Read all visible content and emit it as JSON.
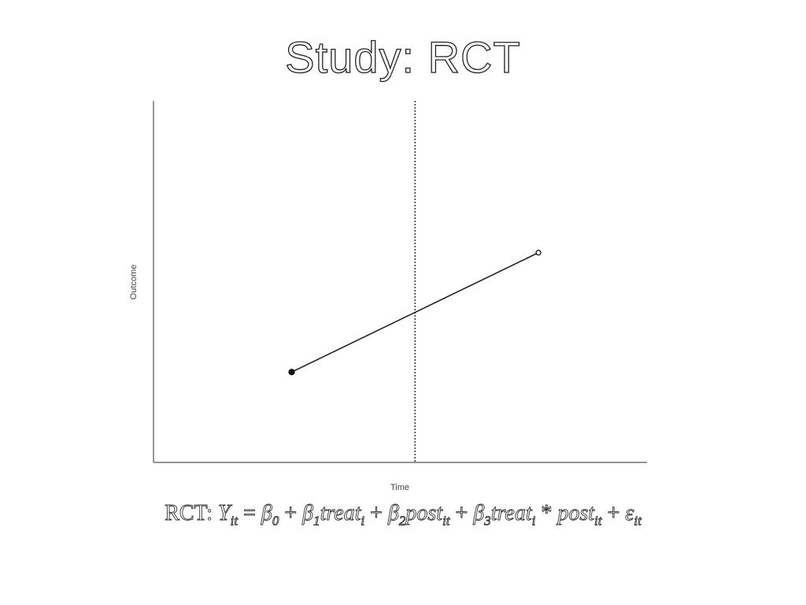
{
  "title": "Study: RCT",
  "chart_data": {
    "type": "line",
    "xlabel": "Time",
    "ylabel": "Outcome",
    "xlim": [
      0,
      1
    ],
    "ylim": [
      0,
      1
    ],
    "grid": false,
    "series": [
      {
        "x": [
          0.28,
          0.78
        ],
        "y": [
          0.25,
          0.58
        ],
        "markers": [
          {
            "fill": "filled"
          },
          {
            "fill": "open"
          }
        ]
      }
    ],
    "reference_lines": [
      {
        "orientation": "vertical",
        "x": 0.53,
        "style": "dotted"
      }
    ]
  },
  "equation": {
    "lhs": "RCT:",
    "Y": "Y",
    "Y_sub": "it",
    "beta0": "β",
    "beta0_sub": "0",
    "beta1": "β",
    "beta1_sub": "1",
    "treat": "treat",
    "treat_sub": "i",
    "beta2": "β",
    "beta2_sub": "2",
    "post": "post",
    "post_sub": "it",
    "beta3": "β",
    "beta3_sub": "3",
    "treat2": "treat",
    "treat2_sub": "i",
    "post2": "post",
    "post2_sub": "it",
    "eps": "ε",
    "eps_sub": "it"
  },
  "colors": {
    "axis": "#555555",
    "line": "#222222",
    "marker": "#111111"
  }
}
